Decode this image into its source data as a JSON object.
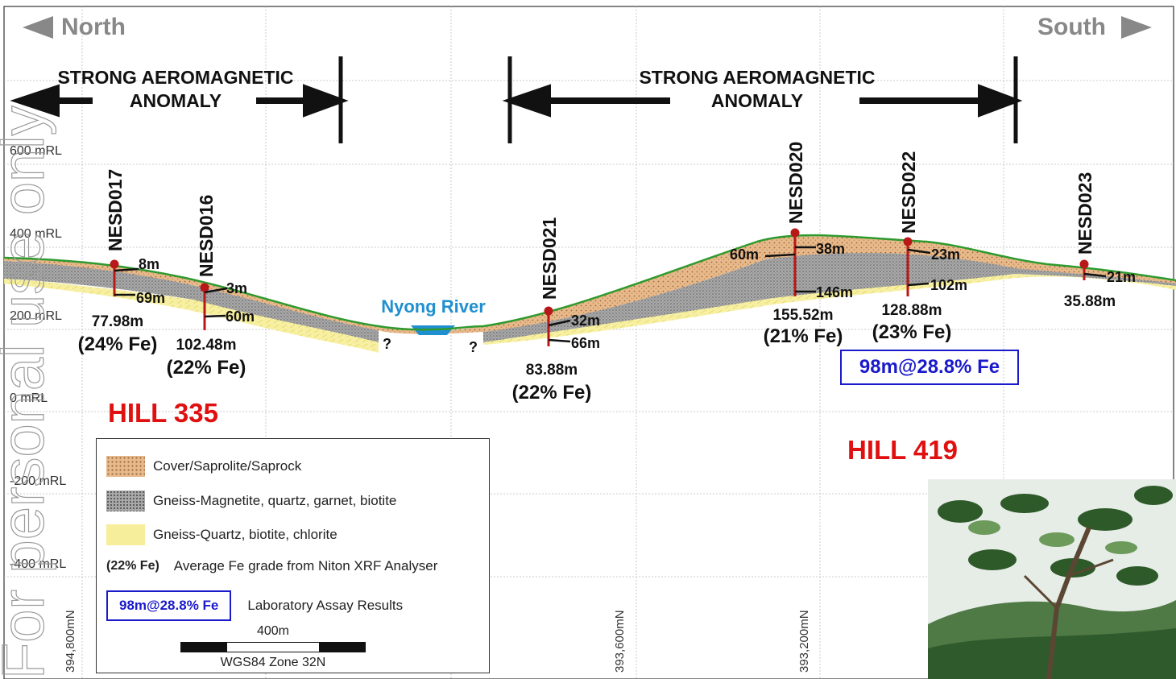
{
  "directions": {
    "left": "North",
    "right": "South"
  },
  "anomaly": {
    "line1": "STRONG AEROMAGNETIC",
    "line2": "ANOMALY"
  },
  "rl_labels": [
    "600 mRL",
    "400 mRL",
    "200 mRL",
    "0 mRL",
    "-200 mRL",
    "-400 mRL"
  ],
  "northings": [
    "394,800mN",
    "393,600mN",
    "393,200mN"
  ],
  "holes": [
    {
      "name": "NESD017",
      "depth": "77.98m",
      "grade": "(24% Fe)",
      "tags": [
        "8m",
        "69m"
      ]
    },
    {
      "name": "NESD016",
      "depth": "102.48m",
      "grade": "(22% Fe)",
      "tags": [
        "3m",
        "60m"
      ]
    },
    {
      "name": "NESD021",
      "depth": "83.88m",
      "grade": "(22% Fe)",
      "tags": [
        "32m",
        "66m"
      ]
    },
    {
      "name": "NESD020",
      "depth": "155.52m",
      "grade": "(21% Fe)",
      "tags": [
        "60m",
        "38m",
        "146m"
      ]
    },
    {
      "name": "NESD022",
      "depth": "128.88m",
      "grade": "(23% Fe)",
      "tags": [
        "23m",
        "102m"
      ]
    },
    {
      "name": "NESD023",
      "depth": "35.88m",
      "grade": "",
      "tags": [
        "21m"
      ]
    }
  ],
  "river": "Nyong River",
  "unknown_mark": "?",
  "hills": [
    "HILL 335",
    "HILL 419"
  ],
  "assay_highlight": "98m@28.8% Fe",
  "legend": {
    "items": [
      {
        "label": "Cover/Saprolite/Saprock"
      },
      {
        "label": "Gneiss-Magnetite, quartz, garnet, biotite"
      },
      {
        "label": "Gneiss-Quartz, biotite, chlorite"
      }
    ],
    "grade_sample": "(22% Fe)",
    "grade_text": "Average Fe grade from Niton XRF Analyser",
    "assay_sample": "98m@28.8% Fe",
    "assay_text": "Laboratory Assay Results",
    "scale_label": "400m",
    "scale_zone": "WGS84 Zone 32N"
  },
  "watermark": "For personal use only",
  "colors": {
    "cover": "#e8b98a",
    "magnetite": "#a8a8a8",
    "quartz": "#f6ee9a",
    "surface": "#2e9a2e",
    "hole": "#b81818",
    "hill": "#e01010",
    "assay": "#1a1acc",
    "river": "#1f8fd0"
  }
}
